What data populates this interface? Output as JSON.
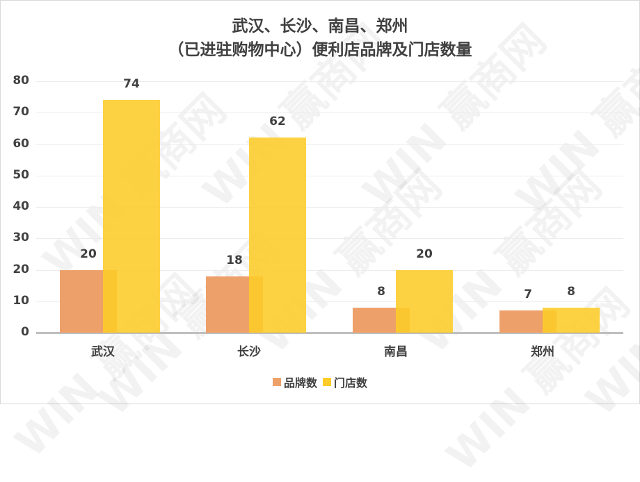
{
  "title_line1": "武汉、长沙、南昌、郑州",
  "title_line2": "（已进驻购物中心）便利店品牌及门店数量",
  "watermark": "WIN 赢商网",
  "legend": [
    {
      "label": "品牌数",
      "color": "#eea06a"
    },
    {
      "label": "门店数",
      "color": "#fdcc28"
    }
  ],
  "chart_data": {
    "type": "bar",
    "title": "武汉、长沙、南昌、郑州（已进驻购物中心）便利店品牌及门店数量",
    "categories": [
      "武汉",
      "长沙",
      "南昌",
      "郑州"
    ],
    "series": [
      {
        "name": "品牌数",
        "values": [
          20,
          18,
          8,
          7
        ],
        "color": "#eea06a"
      },
      {
        "name": "门店数",
        "values": [
          74,
          62,
          20,
          8
        ],
        "color": "#fdcc28"
      }
    ],
    "yticks": [
      0,
      10,
      20,
      30,
      40,
      50,
      60,
      70,
      80
    ],
    "ylim": [
      0,
      80
    ],
    "xlabel": "",
    "ylabel": "",
    "grid": true,
    "legend_position": "bottom"
  }
}
